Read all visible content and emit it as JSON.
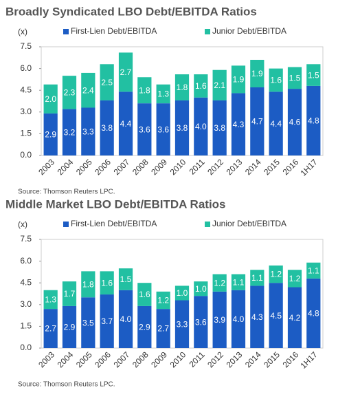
{
  "chart_data": [
    {
      "type": "stacked_bar",
      "title": "Broadly Syndicated LBO Debt/EBITDA Ratios",
      "y_label": "(x)",
      "source": "Source: Thomson Reuters LPC.",
      "categories": [
        "2003",
        "2004",
        "2005",
        "2006",
        "2007",
        "2008",
        "2009",
        "2010",
        "2011",
        "2012",
        "2013",
        "2014",
        "2015",
        "2016",
        "1H17"
      ],
      "series": [
        {
          "name": "First-Lien Debt/EBITDA",
          "color": "#1c5cc4",
          "values": [
            2.9,
            3.2,
            3.3,
            3.8,
            4.4,
            3.6,
            3.6,
            3.8,
            4.0,
            3.8,
            4.3,
            4.7,
            4.4,
            4.6,
            4.8
          ],
          "value_labels": [
            "2.9",
            "3.2",
            "3.3",
            "3.8",
            "4.4",
            "3.6",
            "3.6",
            "3.8",
            "4.0",
            "3.8",
            "4.3",
            "4.7",
            "4.4",
            "4.6",
            "4.8"
          ]
        },
        {
          "name": "Junior Debt/EBITDA",
          "color": "#22c0a2",
          "values": [
            2.0,
            2.3,
            2.4,
            2.5,
            2.7,
            1.8,
            1.3,
            1.8,
            1.6,
            2.1,
            1.9,
            1.9,
            1.6,
            1.5,
            1.5
          ],
          "value_labels": [
            "2.0",
            "2.3",
            "2.4",
            "2.5",
            "2.7",
            "1.8",
            "1.3",
            "1.8",
            "1.6",
            "2.1",
            "1.9",
            "1.9",
            "1.6",
            "1.5",
            "1.5"
          ]
        }
      ],
      "ylim": [
        0,
        7.5
      ],
      "yticks": [
        {
          "value": 0,
          "label": "0.0"
        },
        1.5,
        {
          "value": 3,
          "label": "3.0"
        },
        4.5,
        {
          "value": 6,
          "label": "6.0"
        },
        7.5
      ]
    },
    {
      "type": "stacked_bar",
      "title": "Middle Market LBO Debt/EBITDA Ratios",
      "y_label": "(x)",
      "source": "Source: Thomson Reuters LPC.",
      "categories": [
        "2003",
        "2004",
        "2005",
        "2006",
        "2007",
        "2008",
        "2009",
        "2010",
        "2011",
        "2012",
        "2013",
        "2014",
        "2015",
        "2016",
        "1H17"
      ],
      "series": [
        {
          "name": "First-Lien Debt/EBITDA",
          "color": "#1c5cc4",
          "values": [
            2.7,
            2.9,
            3.5,
            3.7,
            4.0,
            2.9,
            2.7,
            3.3,
            3.6,
            3.9,
            4.0,
            4.3,
            4.5,
            4.2,
            4.8
          ],
          "value_labels": [
            "2.7",
            "2.9",
            "3.5",
            "3.7",
            "4.0",
            "2.9",
            "2.7",
            "3.3",
            "3.6",
            "3.9",
            "4.0",
            "4.3",
            "4.5",
            "4.2",
            "4.8"
          ]
        },
        {
          "name": "Junior Debt/EBITDA",
          "color": "#22c0a2",
          "values": [
            1.3,
            1.7,
            1.8,
            1.6,
            1.5,
            1.6,
            1.2,
            1.0,
            1.0,
            1.2,
            1.1,
            1.1,
            1.2,
            1.2,
            1.1
          ],
          "value_labels": [
            "1.3",
            "1.7",
            "1.8",
            "1.6",
            "1.5",
            "1.6",
            "1.2",
            "1.0",
            "1.0",
            "1.2",
            "1.1",
            "1.1",
            "1.2",
            "1.2",
            "1.1"
          ]
        }
      ],
      "ylim": [
        0,
        7.5
      ],
      "yticks": [
        {
          "value": 0,
          "label": "0.0"
        },
        1.5,
        {
          "value": 3,
          "label": "3.0"
        },
        4.5,
        {
          "value": 6,
          "label": "6.0"
        },
        7.5
      ]
    }
  ]
}
